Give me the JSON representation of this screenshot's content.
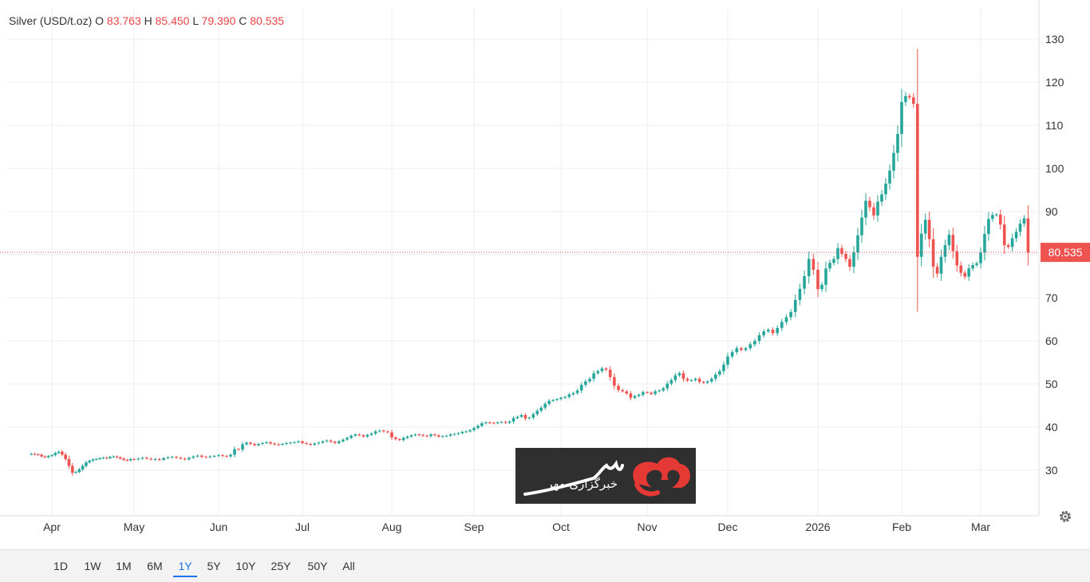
{
  "legend": {
    "name": "Silver (USD/t.oz)",
    "open_label": "O",
    "open": "83.763",
    "high_label": "H",
    "high": "85.450",
    "low_label": "L",
    "low": "79.390",
    "close_label": "C",
    "close": "80.535"
  },
  "colors": {
    "up": "#26a69a",
    "down": "#ef5350",
    "grid": "#eeeeee",
    "last_price": "#ef5350"
  },
  "range_buttons": [
    "1D",
    "1W",
    "1M",
    "6M",
    "1Y",
    "5Y",
    "10Y",
    "25Y",
    "50Y",
    "All"
  ],
  "active_range": "1Y",
  "watermark": {
    "logo_icon": "mehr-news-logo-icon",
    "text": "خبرگزاری مهر"
  },
  "settings_icon": "gear-icon",
  "chart_data": {
    "type": "candlestick",
    "y_axis": {
      "side": "right",
      "range": [
        20,
        132
      ],
      "ticks": [
        30,
        40,
        50,
        60,
        70,
        80,
        90,
        100,
        110,
        120,
        130
      ]
    },
    "x_axis_labels": [
      "Apr",
      "May",
      "Jun",
      "Jul",
      "Aug",
      "Sep",
      "Oct",
      "Nov",
      "Dec",
      "2026",
      "Feb",
      "Mar"
    ],
    "last_price": 80.535,
    "last_price_label": "80.535",
    "grid": true,
    "points_per_month": [
      6,
      24,
      20,
      21,
      22,
      21,
      22,
      21,
      20,
      20,
      21,
      20,
      9
    ],
    "series": [
      {
        "name": "Silver",
        "close": [
          33.8,
          33.7,
          33.6,
          33.2,
          33.0,
          33.3,
          33.5,
          34.0,
          34.3,
          33.6,
          32.6,
          31.0,
          29.4,
          29.6,
          30.2,
          31.0,
          31.8,
          32.2,
          32.5,
          32.6,
          32.8,
          32.9,
          32.8,
          33.1,
          33.2,
          33.0,
          32.7,
          32.4,
          32.3,
          32.6,
          32.5,
          32.7,
          32.9,
          32.7,
          32.5,
          32.6,
          32.4,
          32.8,
          33.0,
          33.1,
          32.9,
          32.7,
          32.5,
          32.9,
          33.2,
          33.4,
          33.1,
          33.0,
          33.2,
          33.3,
          33.5,
          33.3,
          33.2,
          33.6,
          34.9,
          34.8,
          36.0,
          36.4,
          36.1,
          35.8,
          36.1,
          36.3,
          36.5,
          36.2,
          36.0,
          35.9,
          36.1,
          36.3,
          36.4,
          36.5,
          36.7,
          36.3,
          36.1,
          35.9,
          36.2,
          36.4,
          36.7,
          36.9,
          36.6,
          36.3,
          36.7,
          37.1,
          37.5,
          38.0,
          38.3,
          38.1,
          37.8,
          38.2,
          38.5,
          39.0,
          39.2,
          39.0,
          38.8,
          37.6,
          37.2,
          37.0,
          37.5,
          37.8,
          38.1,
          38.3,
          38.2,
          38.0,
          37.9,
          38.3,
          38.1,
          37.8,
          37.9,
          38.0,
          38.3,
          38.4,
          38.6,
          38.9,
          39.0,
          39.3,
          39.8,
          40.3,
          40.9,
          41.1,
          41.0,
          40.9,
          41.1,
          41.2,
          41.0,
          41.3,
          42.1,
          42.4,
          42.8,
          42.0,
          42.2,
          43.0,
          43.8,
          44.5,
          45.4,
          46.1,
          46.3,
          46.5,
          46.8,
          47.0,
          47.6,
          47.9,
          48.5,
          49.8,
          50.6,
          51.2,
          52.5,
          53.0,
          53.6,
          53.3,
          51.6,
          49.6,
          48.6,
          48.3,
          47.8,
          46.8,
          47.2,
          47.5,
          48.1,
          48.0,
          47.7,
          48.3,
          48.5,
          49.0,
          50.1,
          50.9,
          52.0,
          52.5,
          51.2,
          50.8,
          50.9,
          51.2,
          50.5,
          50.3,
          50.6,
          51.2,
          52.2,
          53.0,
          54.5,
          56.4,
          57.4,
          58.3,
          57.9,
          58.3,
          59.2,
          60.0,
          61.3,
          62.2,
          62.6,
          61.8,
          63.0,
          64.4,
          65.5,
          66.7,
          69.5,
          72.1,
          75.0,
          79.0,
          76.5,
          72.0,
          73.0,
          76.8,
          78.1,
          79.0,
          81.5,
          80.2,
          79.0,
          77.2,
          80.5,
          84.5,
          88.6,
          92.5,
          91.0,
          89.1,
          92.3,
          94.0,
          96.5,
          99.5,
          103.6,
          108.0,
          115.4,
          116.8,
          116.5,
          115.0,
          79.5,
          84.9,
          88.1,
          83.6,
          77.2,
          75.6,
          79.5,
          82.2,
          84.6,
          80.8,
          77.5,
          75.8,
          74.9,
          76.8,
          77.6,
          78.0,
          80.5,
          84.8,
          88.3,
          89.2,
          89.3,
          87.0,
          82.2,
          81.8,
          83.8,
          85.3,
          87.2,
          88.4,
          80.535
        ]
      }
    ]
  }
}
